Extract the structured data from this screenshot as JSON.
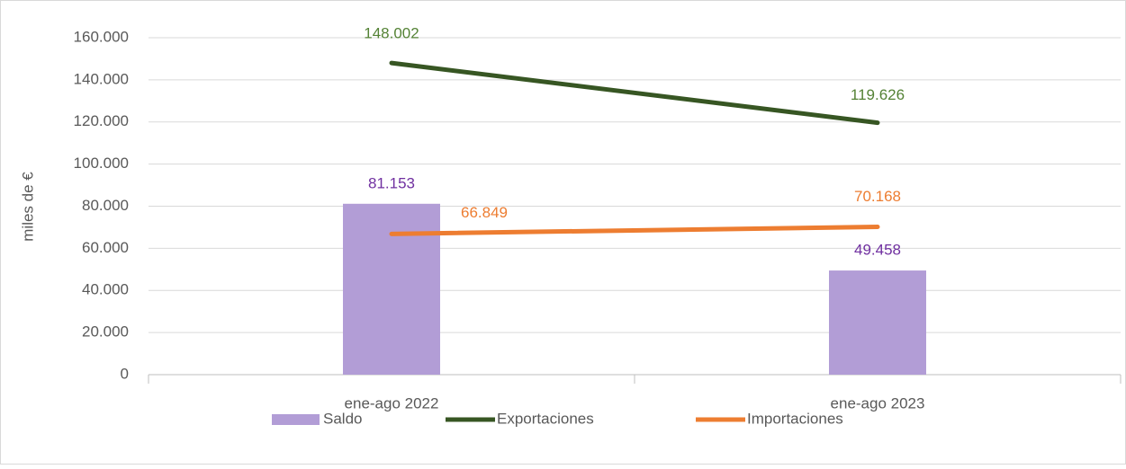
{
  "chart_data": {
    "type": "bar",
    "categories": [
      "ene-ago 2022",
      "ene-ago 2023"
    ],
    "series": [
      {
        "name": "Saldo",
        "type": "bar",
        "color": "#b29dd6",
        "label_color": "#7030a0",
        "values": [
          81153,
          49458
        ],
        "value_labels": [
          "81.153",
          "49.458"
        ]
      },
      {
        "name": "Exportaciones",
        "type": "line",
        "color": "#375623",
        "label_color": "#548235",
        "values": [
          148002,
          119626
        ],
        "value_labels": [
          "148.002",
          "119.626"
        ]
      },
      {
        "name": "Importaciones",
        "type": "line",
        "color": "#ed7d31",
        "label_color": "#ed7d31",
        "values": [
          66849,
          70168
        ],
        "value_labels": [
          "66.849",
          "70.168"
        ]
      }
    ],
    "y_label": "miles de €",
    "ylim": [
      0,
      160000
    ],
    "yticks": [
      0,
      {
        "value": 20000,
        "label": "20.000"
      },
      {
        "value": 40000,
        "label": "40.000"
      },
      {
        "value": 60000,
        "label": "60.000"
      },
      {
        "value": 80000,
        "label": "80.000"
      },
      {
        "value": 100000,
        "label": "100.000"
      },
      {
        "value": 120000,
        "label": "120.000"
      },
      {
        "value": 140000,
        "label": "140.000"
      },
      {
        "value": 160000,
        "label": "160.000"
      }
    ],
    "grid": true,
    "legend": "bottom"
  }
}
